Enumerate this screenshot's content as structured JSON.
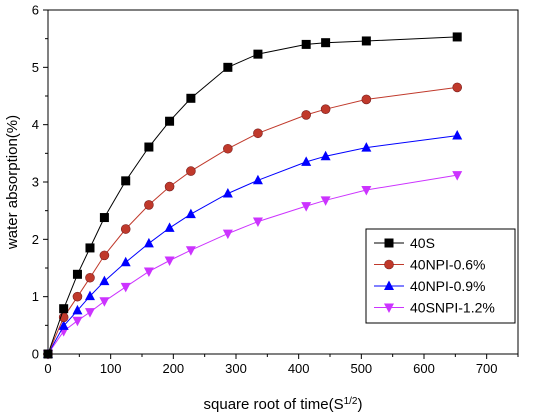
{
  "chart_data": {
    "type": "line",
    "xlabel": "square root of time(S",
    "xlabel_sup": "1/2",
    "xlabel_close": ")",
    "ylabel": "water absorption(%)",
    "xlim": [
      0,
      750
    ],
    "ylim": [
      0,
      6
    ],
    "x_ticks": [
      "0",
      "100",
      "200",
      "300",
      "400",
      "500",
      "600",
      "700"
    ],
    "y_ticks": [
      "0",
      "1",
      "2",
      "3",
      "4",
      "5",
      "6"
    ],
    "grid": false,
    "legend_position": "bottom-right",
    "series": [
      {
        "name": "40S",
        "color": "#000000",
        "marker": "square",
        "points": [
          [
            0,
            0
          ],
          [
            25,
            0.79
          ],
          [
            47,
            1.39
          ],
          [
            67,
            1.85
          ],
          [
            90,
            2.38
          ],
          [
            124,
            3.02
          ],
          [
            161,
            3.61
          ],
          [
            194,
            4.06
          ],
          [
            228,
            4.46
          ],
          [
            287,
            5.0
          ],
          [
            335,
            5.23
          ],
          [
            412,
            5.4
          ],
          [
            443,
            5.43
          ],
          [
            508,
            5.46
          ],
          [
            653,
            5.53
          ]
        ]
      },
      {
        "name": "40NPI-0.6%",
        "color": "#c0392b",
        "marker": "circle",
        "points": [
          [
            0,
            0
          ],
          [
            25,
            0.64
          ],
          [
            47,
            1.0
          ],
          [
            67,
            1.33
          ],
          [
            90,
            1.72
          ],
          [
            124,
            2.18
          ],
          [
            161,
            2.6
          ],
          [
            194,
            2.92
          ],
          [
            228,
            3.19
          ],
          [
            287,
            3.58
          ],
          [
            335,
            3.85
          ],
          [
            412,
            4.17
          ],
          [
            443,
            4.27
          ],
          [
            508,
            4.44
          ],
          [
            653,
            4.65
          ]
        ]
      },
      {
        "name": "40NPI-0.9%",
        "color": "#0000ff",
        "marker": "triangle-up",
        "points": [
          [
            0,
            0
          ],
          [
            25,
            0.49
          ],
          [
            47,
            0.76
          ],
          [
            67,
            1.01
          ],
          [
            90,
            1.27
          ],
          [
            124,
            1.6
          ],
          [
            161,
            1.93
          ],
          [
            194,
            2.2
          ],
          [
            228,
            2.44
          ],
          [
            287,
            2.8
          ],
          [
            335,
            3.03
          ],
          [
            412,
            3.35
          ],
          [
            443,
            3.45
          ],
          [
            508,
            3.6
          ],
          [
            653,
            3.81
          ]
        ]
      },
      {
        "name": "40SNPI-1.2%",
        "color": "#cc33ff",
        "marker": "triangle-down",
        "points": [
          [
            0,
            0
          ],
          [
            25,
            0.4
          ],
          [
            47,
            0.58
          ],
          [
            67,
            0.73
          ],
          [
            90,
            0.92
          ],
          [
            124,
            1.17
          ],
          [
            161,
            1.44
          ],
          [
            194,
            1.63
          ],
          [
            228,
            1.81
          ],
          [
            287,
            2.1
          ],
          [
            335,
            2.31
          ],
          [
            412,
            2.58
          ],
          [
            443,
            2.68
          ],
          [
            508,
            2.86
          ],
          [
            653,
            3.12
          ]
        ]
      }
    ]
  }
}
